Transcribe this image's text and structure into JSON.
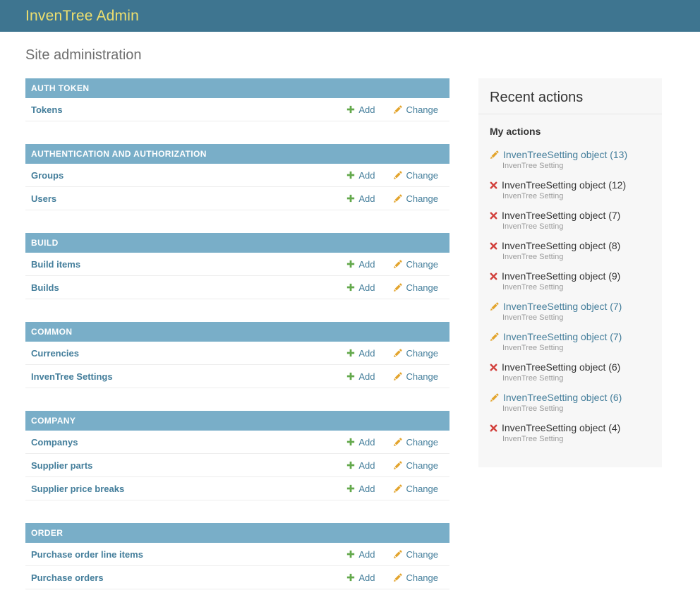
{
  "colors": {
    "header_bg": "#3e7590",
    "header_title": "#eedf6e",
    "caption_bg": "#79aec8",
    "link": "#447e9b",
    "add_green": "#64a94c",
    "pencil_yellow": "#e3a42c",
    "delete_red": "#d2403c",
    "panel_bg": "#f7f7f7",
    "heading_gray": "#6e6e6e",
    "text_dark": "#333333",
    "muted": "#9a9a9a"
  },
  "header": {
    "title": "InvenTree Admin"
  },
  "page_title": "Site administration",
  "labels": {
    "add": "Add",
    "change": "Change"
  },
  "icons": {
    "add": "plus-icon",
    "change": "pencil-icon",
    "delete": "cross-icon"
  },
  "app_list": [
    {
      "name": "AUTH TOKEN",
      "models": [
        "Tokens"
      ]
    },
    {
      "name": "AUTHENTICATION AND AUTHORIZATION",
      "models": [
        "Groups",
        "Users"
      ]
    },
    {
      "name": "BUILD",
      "models": [
        "Build items",
        "Builds"
      ]
    },
    {
      "name": "COMMON",
      "models": [
        "Currencies",
        "InvenTree Settings"
      ]
    },
    {
      "name": "COMPANY",
      "models": [
        "Companys",
        "Supplier parts",
        "Supplier price breaks"
      ]
    },
    {
      "name": "ORDER",
      "models": [
        "Purchase order line items",
        "Purchase orders"
      ]
    }
  ],
  "recent_actions": {
    "title": "Recent actions",
    "subtitle": "My actions",
    "items": [
      {
        "action": "change",
        "label": "InvenTreeSetting object (13)",
        "type": "InvenTree Setting",
        "link": true
      },
      {
        "action": "delete",
        "label": "InvenTreeSetting object (12)",
        "type": "InvenTree Setting",
        "link": false
      },
      {
        "action": "delete",
        "label": "InvenTreeSetting object (7)",
        "type": "InvenTree Setting",
        "link": false
      },
      {
        "action": "delete",
        "label": "InvenTreeSetting object (8)",
        "type": "InvenTree Setting",
        "link": false
      },
      {
        "action": "delete",
        "label": "InvenTreeSetting object (9)",
        "type": "InvenTree Setting",
        "link": false
      },
      {
        "action": "change",
        "label": "InvenTreeSetting object (7)",
        "type": "InvenTree Setting",
        "link": true
      },
      {
        "action": "change",
        "label": "InvenTreeSetting object (7)",
        "type": "InvenTree Setting",
        "link": true
      },
      {
        "action": "delete",
        "label": "InvenTreeSetting object (6)",
        "type": "InvenTree Setting",
        "link": false
      },
      {
        "action": "change",
        "label": "InvenTreeSetting object (6)",
        "type": "InvenTree Setting",
        "link": true
      },
      {
        "action": "delete",
        "label": "InvenTreeSetting object (4)",
        "type": "InvenTree Setting",
        "link": false
      }
    ]
  }
}
